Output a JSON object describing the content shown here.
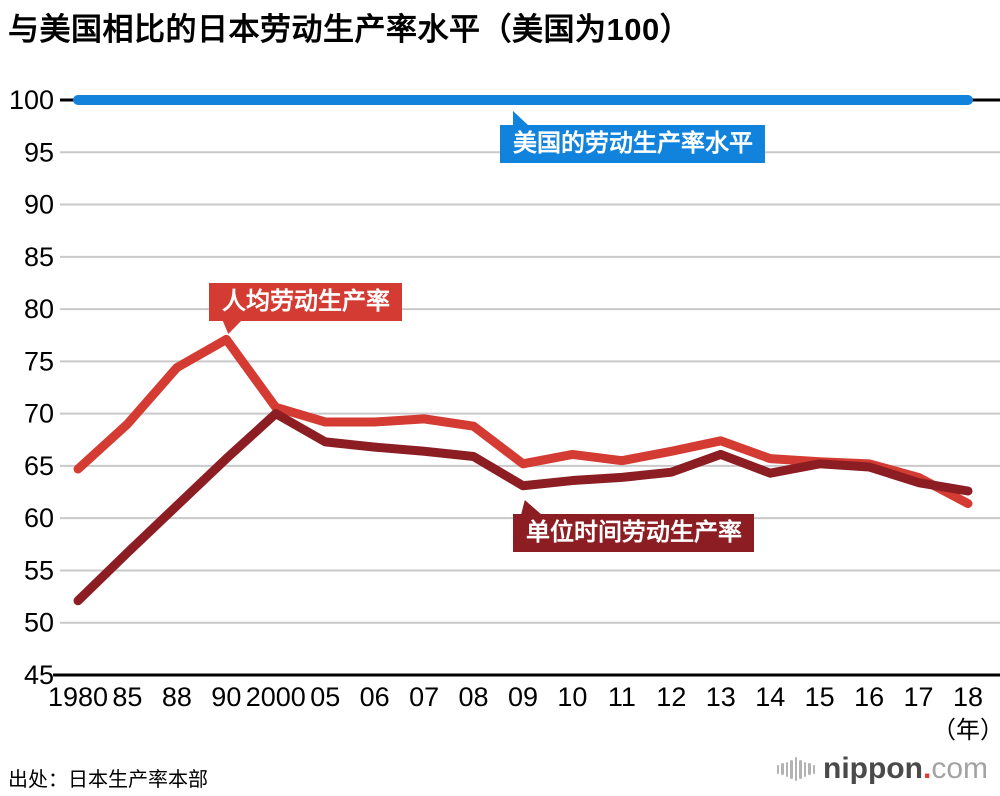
{
  "page_title": "与美国相比的日本劳动生产率水平（美国为100）",
  "source_note": "出处：日本生产率本部",
  "logo": {
    "icon": "soundwave-icon",
    "word": "nippon",
    "dot": ".",
    "tld": "com"
  },
  "colors": {
    "us_blue": "#1183dc",
    "per_capita_red": "#d43b32",
    "per_hour_darkred": "#8c1e23",
    "grid_gray": "#c9c9c9",
    "axis_black": "#000000",
    "logo_dot_red": "#e8382f",
    "text_black": "#000000"
  },
  "chart_data": {
    "type": "line",
    "title": "与美国相比的日本劳动生产率水平（美国为100）",
    "categories": [
      "1980",
      "85",
      "88",
      "90",
      "2000",
      "05",
      "06",
      "07",
      "08",
      "09",
      "10",
      "11",
      "12",
      "13",
      "14",
      "15",
      "16",
      "17",
      "18"
    ],
    "x_axis_unit": "（年）",
    "ylim": [
      45,
      100
    ],
    "ytick_step": 5,
    "grid": true,
    "legend_position": "inline-callouts",
    "series": [
      {
        "key": "us",
        "name": "美国的劳动生产率水平",
        "color_key": "us_blue",
        "values": [
          100,
          100,
          100,
          100,
          100,
          100,
          100,
          100,
          100,
          100,
          100,
          100,
          100,
          100,
          100,
          100,
          100,
          100,
          100
        ]
      },
      {
        "key": "per_capita",
        "name": "人均劳动生产率",
        "color_key": "per_capita_red",
        "values": [
          64.7,
          69.0,
          74.4,
          77.1,
          70.6,
          69.2,
          69.2,
          69.5,
          68.8,
          65.2,
          66.1,
          65.5,
          66.4,
          67.4,
          65.7,
          65.4,
          65.2,
          63.9,
          61.4
        ]
      },
      {
        "key": "per_hour",
        "name": "单位时间劳动生产率",
        "color_key": "per_hour_darkred",
        "values": [
          52.1,
          56.7,
          61.2,
          65.7,
          70.0,
          67.3,
          66.8,
          66.4,
          65.9,
          63.1,
          63.6,
          63.9,
          64.4,
          66.1,
          64.3,
          65.2,
          64.9,
          63.4,
          62.6
        ]
      }
    ],
    "annotations": [
      {
        "id": "us",
        "text": "美国的劳动生产率水平"
      },
      {
        "id": "per-capita",
        "text": "人均劳动生产率"
      },
      {
        "id": "per-hour",
        "text": "单位时间劳动生产率"
      }
    ]
  }
}
